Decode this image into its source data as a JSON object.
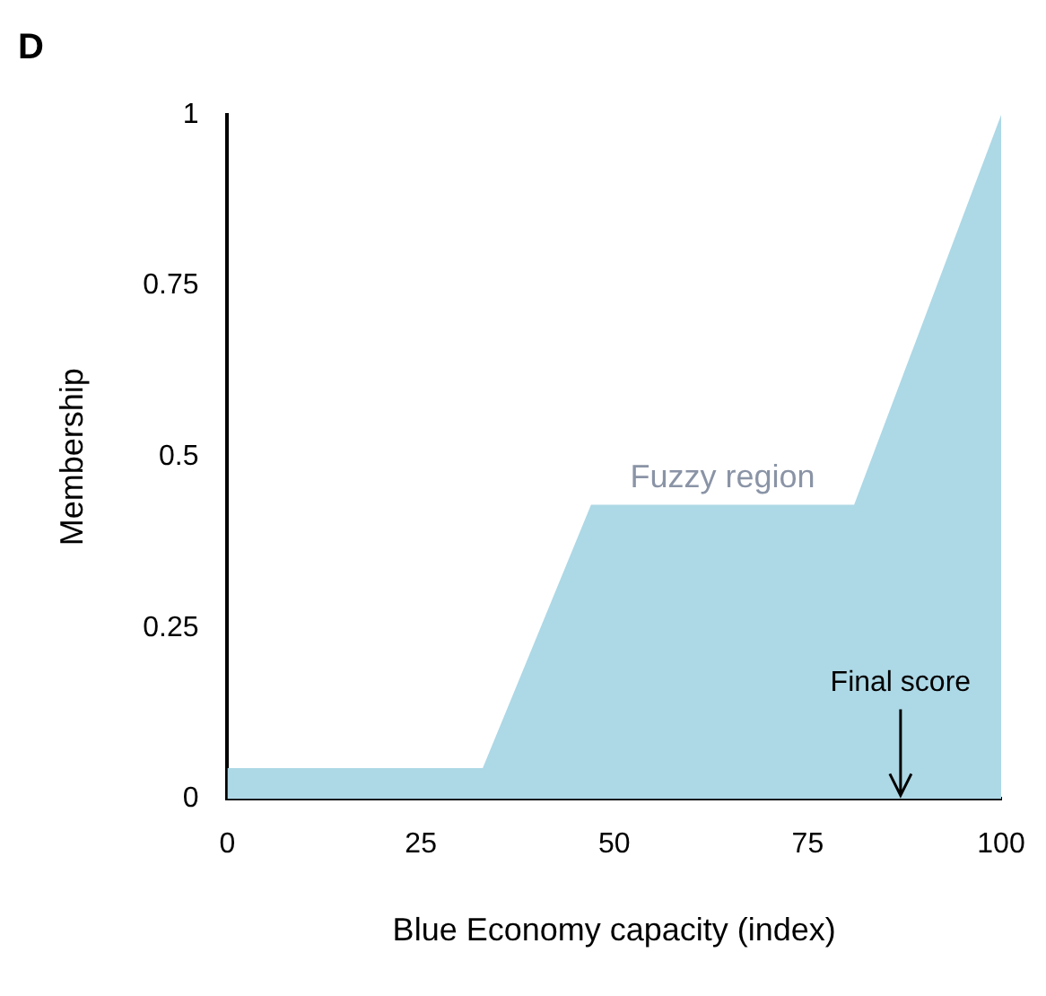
{
  "chart_data": {
    "type": "area",
    "title": "D",
    "xlabel": "Blue Economy capacity (index)",
    "ylabel": "Membership",
    "x": [
      0,
      33,
      47,
      81,
      100
    ],
    "series": [
      {
        "color": "#add8e6",
        "values": [
          0.045,
          0.045,
          0.43,
          0.43,
          1
        ]
      }
    ],
    "xlim": [
      0,
      100
    ],
    "xticks": [
      0,
      25,
      50,
      75,
      100
    ],
    "ylim": [
      0,
      1
    ],
    "yticks": [
      0,
      0.25,
      0.5,
      0.75,
      1
    ],
    "grid": false,
    "legend": false,
    "annotations": [
      {
        "text": "Fuzzy region",
        "x": 64,
        "y": 0.43
      },
      {
        "text": "Final score",
        "x": 87,
        "y": 0
      }
    ]
  }
}
